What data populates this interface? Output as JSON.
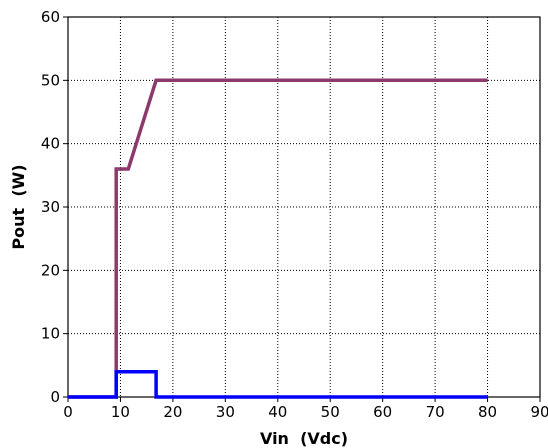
{
  "chart_data": {
    "type": "line",
    "xlabel": "Vin  (Vdc)",
    "ylabel": "Pout  (W)",
    "xlim": [
      0,
      90
    ],
    "ylim": [
      0,
      60
    ],
    "xticks": [
      0,
      10,
      20,
      30,
      40,
      50,
      60,
      70,
      80,
      90
    ],
    "yticks": [
      0,
      10,
      20,
      30,
      40,
      50,
      60
    ],
    "grid": true,
    "series": [
      {
        "color": "#8b3a6b",
        "x": [
          0,
          9.2,
          9.2,
          11.5,
          16.8,
          80
        ],
        "y": [
          0,
          0,
          36,
          36,
          50,
          50
        ]
      },
      {
        "color": "#0000ff",
        "x": [
          0,
          9.2,
          9.2,
          16.8,
          16.8,
          80
        ],
        "y": [
          0,
          0,
          4,
          4,
          0,
          0
        ]
      }
    ]
  }
}
